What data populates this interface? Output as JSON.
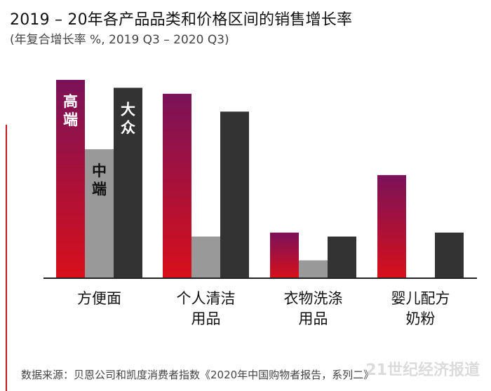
{
  "title": "2019 – 20年各产品品类和价格区间的销售增长率",
  "subtitle": "(年复合增长率 %, 2019 Q3 – 2020 Q3)",
  "source": "数据来源：贝恩公司和凯度消费者指数《2020年中国购物者报告，系列二》",
  "watermark": "21世纪经济报道",
  "colors": {
    "premium_top": "#7a1259",
    "premium_bottom": "#d8101b",
    "mid": "#999999",
    "mass": "#333333",
    "axis": "#222222",
    "side_rule": "#c4161c"
  },
  "chart_data": {
    "type": "bar",
    "title": "2019 – 20年各产品品类和价格区间的销售增长率",
    "subtitle": "(年复合增长率 %, 2019 Q3 – 2020 Q3)",
    "categories": [
      [
        "方便面"
      ],
      [
        "个人清洁",
        "用品"
      ],
      [
        "衣物洗涤",
        "用品"
      ],
      [
        "婴儿配方",
        "奶粉"
      ]
    ],
    "series": [
      {
        "name": "高端",
        "label_chars": [
          "高",
          "端"
        ],
        "values": [
          100,
          93,
          23,
          52
        ]
      },
      {
        "name": "中端",
        "label_chars": [
          "中",
          "端"
        ],
        "values": [
          65,
          21,
          9,
          0
        ]
      },
      {
        "name": "大众",
        "label_chars": [
          "大",
          "众"
        ],
        "values": [
          96,
          84,
          21,
          23
        ]
      }
    ],
    "ylim": [
      0,
      100
    ],
    "grid": false,
    "legend": "inline labels on first category bars"
  }
}
